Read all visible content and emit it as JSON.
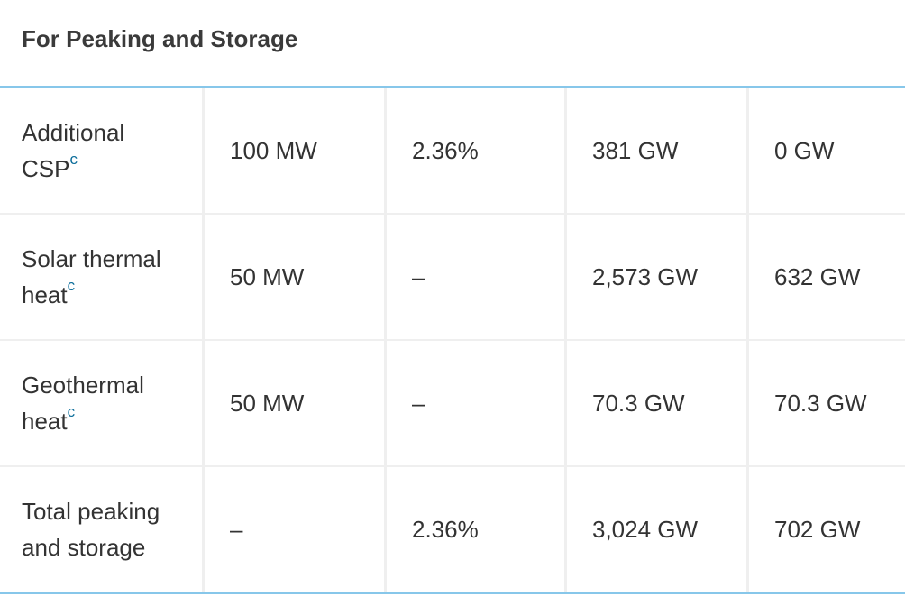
{
  "header": {
    "title": "For Peaking and Storage"
  },
  "table": {
    "rows": [
      {
        "label": "Additional CSP",
        "note": "c",
        "cells": [
          "100 MW",
          "2.36%",
          "381 GW",
          "0 GW"
        ]
      },
      {
        "label": "Solar thermal heat",
        "note": "c",
        "cells": [
          "50 MW",
          "–",
          "2,573 GW",
          "632 GW"
        ]
      },
      {
        "label": "Geothermal heat",
        "note": "c",
        "cells": [
          "50 MW",
          "–",
          "70.3 GW",
          "70.3 GW"
        ]
      },
      {
        "label": "Total peaking and storage",
        "cells": [
          "–",
          "2.36%",
          "3,024 GW",
          "702 GW"
        ]
      }
    ]
  }
}
